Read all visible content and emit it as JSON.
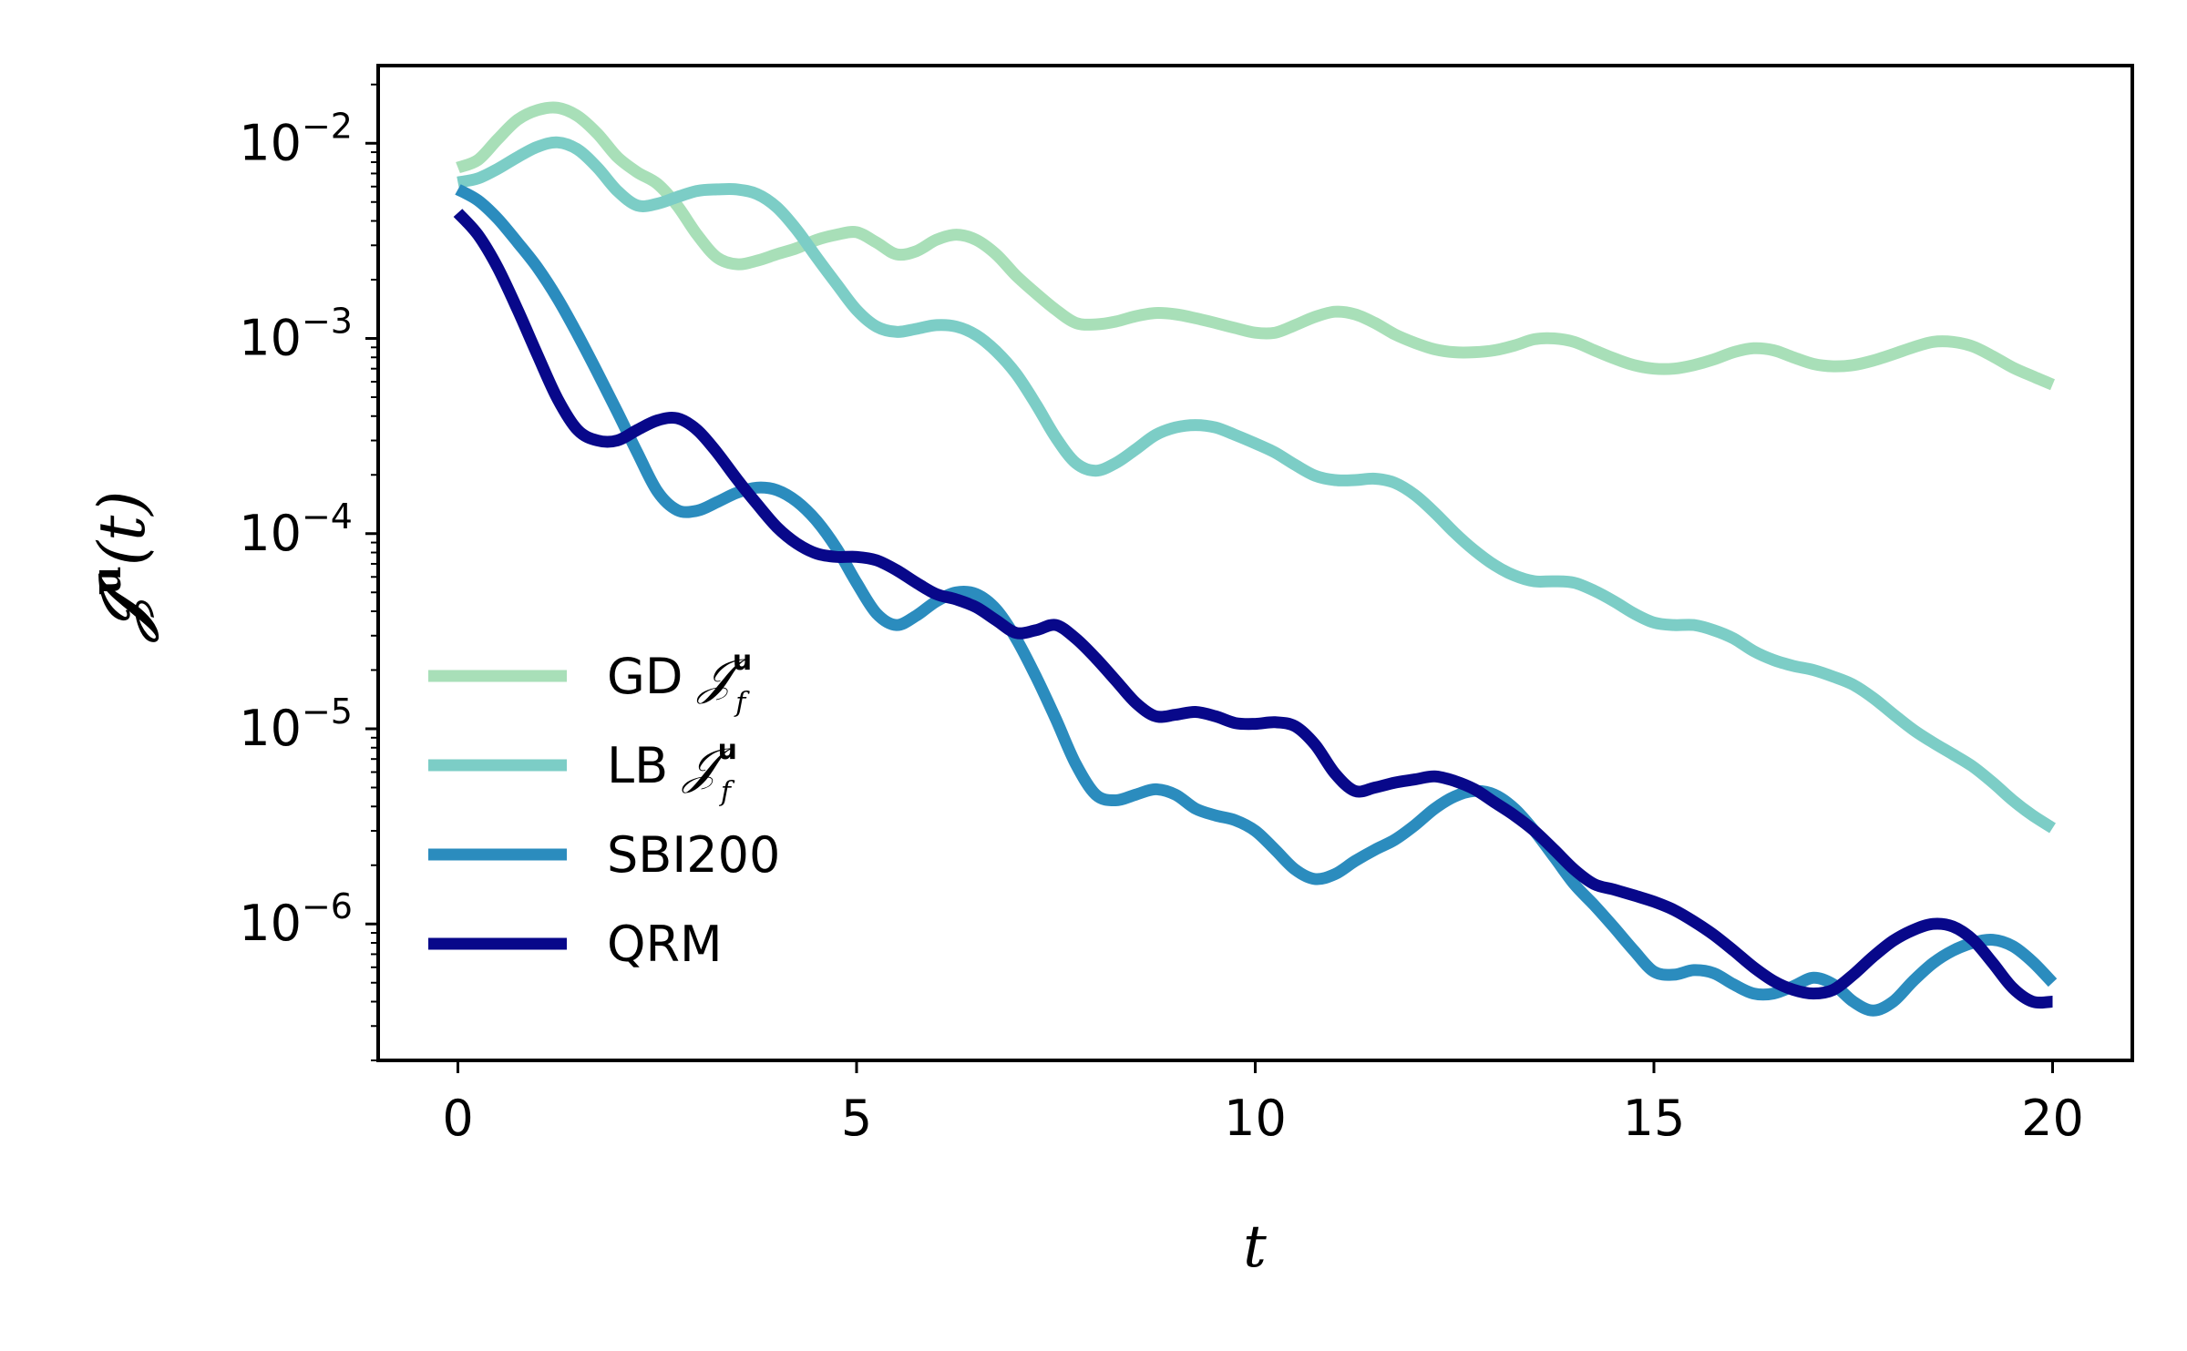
{
  "chart_data": {
    "type": "line",
    "xlabel": "t",
    "ylabel": {
      "main": "𝒥",
      "sup": "u",
      "suffix": "(t)"
    },
    "xlim": [
      -1,
      21
    ],
    "ylim": [
      2e-07,
      0.025
    ],
    "yscale": "log",
    "grid": false,
    "legend_position": "lower-left",
    "x_ticks": [
      0,
      5,
      10,
      15,
      20
    ],
    "x_tick_labels": [
      "0",
      "5",
      "10",
      "15",
      "20"
    ],
    "y_ticks": [
      1e-06,
      1e-05,
      0.0001,
      0.001,
      0.01
    ],
    "y_tick_labels": [
      {
        "base": "10",
        "exp": "−6"
      },
      {
        "base": "10",
        "exp": "−5"
      },
      {
        "base": "10",
        "exp": "−4"
      },
      {
        "base": "10",
        "exp": "−3"
      },
      {
        "base": "10",
        "exp": "−2"
      }
    ],
    "series": [
      {
        "name": "GD 𝒥_f^u",
        "legend_main": "GD ",
        "legend_math": "𝒥",
        "legend_sub": "f",
        "legend_sup": "u",
        "color": "#a8dfb8",
        "width": 13,
        "x": [
          0,
          0.25,
          0.5,
          0.75,
          1.0,
          1.25,
          1.5,
          1.75,
          2.0,
          2.25,
          2.5,
          2.75,
          3.0,
          3.25,
          3.5,
          3.75,
          4.0,
          4.25,
          4.5,
          4.75,
          5.0,
          5.25,
          5.5,
          5.75,
          6.0,
          6.25,
          6.5,
          6.75,
          7.0,
          7.25,
          7.5,
          7.75,
          8.0,
          8.25,
          8.5,
          8.75,
          9.0,
          9.25,
          9.5,
          9.75,
          10.0,
          10.25,
          10.5,
          10.75,
          11.0,
          11.25,
          11.5,
          11.75,
          12.0,
          12.25,
          12.5,
          12.75,
          13.0,
          13.25,
          13.5,
          13.75,
          14.0,
          14.25,
          14.5,
          14.75,
          15.0,
          15.25,
          15.5,
          15.75,
          16.0,
          16.25,
          16.5,
          16.75,
          17.0,
          17.25,
          17.5,
          17.75,
          18.0,
          18.25,
          18.5,
          18.75,
          19.0,
          19.25,
          19.5,
          19.75,
          20.0
        ],
        "y": [
          0.0075,
          0.0082,
          0.0105,
          0.0132,
          0.0148,
          0.0152,
          0.0138,
          0.0112,
          0.0085,
          0.0071,
          0.0062,
          0.0048,
          0.0034,
          0.0026,
          0.0024,
          0.0025,
          0.0027,
          0.0029,
          0.0032,
          0.0034,
          0.0035,
          0.0031,
          0.0027,
          0.0028,
          0.0032,
          0.0034,
          0.0032,
          0.0027,
          0.0021,
          0.0017,
          0.0014,
          0.0012,
          0.00118,
          0.00122,
          0.0013,
          0.00135,
          0.00133,
          0.00127,
          0.0012,
          0.00113,
          0.00107,
          0.00107,
          0.00117,
          0.00129,
          0.00137,
          0.00133,
          0.0012,
          0.00105,
          0.00095,
          0.00088,
          0.00085,
          0.00085,
          0.00087,
          0.00092,
          0.00099,
          0.001,
          0.00096,
          0.00087,
          0.00079,
          0.00073,
          0.0007,
          0.0007,
          0.00073,
          0.00078,
          0.00085,
          0.00089,
          0.00087,
          0.0008,
          0.00074,
          0.00072,
          0.00073,
          0.00077,
          0.00083,
          0.0009,
          0.00096,
          0.00096,
          0.00091,
          0.00081,
          0.00071,
          0.00064,
          0.00058
        ]
      },
      {
        "name": "LB 𝒥_f^u",
        "legend_main": "LB ",
        "legend_math": "𝒥",
        "legend_sub": "f",
        "legend_sup": "u",
        "color": "#7ccdc6",
        "width": 13,
        "x": [
          0,
          0.25,
          0.5,
          0.75,
          1.0,
          1.25,
          1.5,
          1.75,
          2.0,
          2.25,
          2.5,
          2.75,
          3.0,
          3.25,
          3.5,
          3.75,
          4.0,
          4.25,
          4.5,
          4.75,
          5.0,
          5.25,
          5.5,
          5.75,
          6.0,
          6.25,
          6.5,
          6.75,
          7.0,
          7.25,
          7.5,
          7.75,
          8.0,
          8.25,
          8.5,
          8.75,
          9.0,
          9.25,
          9.5,
          9.75,
          10.0,
          10.25,
          10.5,
          10.75,
          11.0,
          11.25,
          11.5,
          11.75,
          12.0,
          12.25,
          12.5,
          12.75,
          13.0,
          13.25,
          13.5,
          13.75,
          14.0,
          14.25,
          14.5,
          14.75,
          15.0,
          15.25,
          15.5,
          15.75,
          16.0,
          16.25,
          16.5,
          16.75,
          17.0,
          17.25,
          17.5,
          17.75,
          18.0,
          18.25,
          18.5,
          18.75,
          19.0,
          19.25,
          19.5,
          19.75,
          20.0
        ],
        "y": [
          0.0063,
          0.0066,
          0.0074,
          0.0085,
          0.0096,
          0.0101,
          0.0093,
          0.0075,
          0.0057,
          0.0048,
          0.0049,
          0.0053,
          0.0057,
          0.0058,
          0.0058,
          0.0055,
          0.0047,
          0.0036,
          0.0026,
          0.0019,
          0.0014,
          0.00115,
          0.00108,
          0.00112,
          0.00117,
          0.00115,
          0.00104,
          0.00086,
          0.00066,
          0.00046,
          0.00031,
          0.00023,
          0.00021,
          0.00023,
          0.00027,
          0.00032,
          0.00035,
          0.00036,
          0.00035,
          0.00032,
          0.00029,
          0.00026,
          0.000225,
          0.000198,
          0.000188,
          0.000188,
          0.000191,
          0.000182,
          0.000158,
          0.000128,
          0.000101,
          8.2e-05,
          6.9e-05,
          6.1e-05,
          5.7e-05,
          5.7e-05,
          5.6e-05,
          5.1e-05,
          4.5e-05,
          3.9e-05,
          3.5e-05,
          3.4e-05,
          3.4e-05,
          3.2e-05,
          2.9e-05,
          2.5e-05,
          2.25e-05,
          2.1e-05,
          2e-05,
          1.85e-05,
          1.68e-05,
          1.44e-05,
          1.19e-05,
          9.9e-06,
          8.5e-06,
          7.4e-06,
          6.4e-06,
          5.3e-06,
          4.3e-06,
          3.6e-06,
          3.1e-06
        ]
      },
      {
        "name": "SBI200",
        "legend_main": "SBI200",
        "color": "#2b8cbe",
        "width": 13,
        "x": [
          0,
          0.25,
          0.5,
          0.75,
          1.0,
          1.25,
          1.5,
          1.75,
          2.0,
          2.25,
          2.5,
          2.75,
          3.0,
          3.25,
          3.5,
          3.75,
          4.0,
          4.25,
          4.5,
          4.75,
          5.0,
          5.25,
          5.5,
          5.75,
          6.0,
          6.25,
          6.5,
          6.75,
          7.0,
          7.25,
          7.5,
          7.75,
          8.0,
          8.25,
          8.5,
          8.75,
          9.0,
          9.25,
          9.5,
          9.75,
          10.0,
          10.25,
          10.5,
          10.75,
          11.0,
          11.25,
          11.5,
          11.75,
          12.0,
          12.25,
          12.5,
          12.75,
          13.0,
          13.25,
          13.5,
          13.75,
          14.0,
          14.25,
          14.5,
          14.75,
          15.0,
          15.25,
          15.5,
          15.75,
          16.0,
          16.25,
          16.5,
          16.75,
          17.0,
          17.25,
          17.5,
          17.75,
          18.0,
          18.25,
          18.5,
          18.75,
          19.0,
          19.25,
          19.5,
          19.75,
          20.0
        ],
        "y": [
          0.0058,
          0.0051,
          0.0041,
          0.0031,
          0.0023,
          0.0016,
          0.00105,
          0.00067,
          0.00042,
          0.00026,
          0.000165,
          0.000132,
          0.000131,
          0.000145,
          0.000162,
          0.000172,
          0.000167,
          0.000146,
          0.000116,
          8.4e-05,
          5.6e-05,
          3.9e-05,
          3.4e-05,
          3.8e-05,
          4.5e-05,
          5e-05,
          4.9e-05,
          4.1e-05,
          2.9e-05,
          1.85e-05,
          1.12e-05,
          6.6e-06,
          4.6e-06,
          4.3e-06,
          4.6e-06,
          4.9e-06,
          4.6e-06,
          3.9e-06,
          3.6e-06,
          3.4e-06,
          3e-06,
          2.4e-06,
          1.9e-06,
          1.7e-06,
          1.8e-06,
          2.1e-06,
          2.4e-06,
          2.7e-06,
          3.2e-06,
          3.9e-06,
          4.5e-06,
          4.8e-06,
          4.6e-06,
          3.9e-06,
          3e-06,
          2.2e-06,
          1.6e-06,
          1.25e-06,
          9.6e-07,
          7.3e-07,
          5.7e-07,
          5.5e-07,
          5.8e-07,
          5.6e-07,
          4.9e-07,
          4.4e-07,
          4.4e-07,
          4.8e-07,
          5.3e-07,
          4.9e-07,
          4e-07,
          3.6e-07,
          4e-07,
          5.1e-07,
          6.3e-07,
          7.3e-07,
          8e-07,
          8.3e-07,
          7.7e-07,
          6.4e-07,
          5e-07
        ]
      },
      {
        "name": "QRM",
        "legend_main": "QRM",
        "color": "#08088a",
        "width": 13,
        "x": [
          0,
          0.25,
          0.5,
          0.75,
          1.0,
          1.25,
          1.5,
          1.75,
          2.0,
          2.25,
          2.5,
          2.75,
          3.0,
          3.25,
          3.5,
          3.75,
          4.0,
          4.25,
          4.5,
          4.75,
          5.0,
          5.25,
          5.5,
          5.75,
          6.0,
          6.25,
          6.5,
          6.75,
          7.0,
          7.25,
          7.5,
          7.75,
          8.0,
          8.25,
          8.5,
          8.75,
          9.0,
          9.25,
          9.5,
          9.75,
          10.0,
          10.25,
          10.5,
          10.75,
          11.0,
          11.25,
          11.5,
          11.75,
          12.0,
          12.25,
          12.5,
          12.75,
          13.0,
          13.25,
          13.5,
          13.75,
          14.0,
          14.25,
          14.5,
          14.75,
          15.0,
          15.25,
          15.5,
          15.75,
          16.0,
          16.25,
          16.5,
          16.75,
          17.0,
          17.25,
          17.5,
          17.75,
          18.0,
          18.25,
          18.5,
          18.75,
          19.0,
          19.25,
          19.5,
          19.75,
          20.0
        ],
        "y": [
          0.0044,
          0.0034,
          0.0023,
          0.0014,
          0.00082,
          0.00049,
          0.00034,
          0.0003,
          0.0003,
          0.00034,
          0.00038,
          0.00039,
          0.00034,
          0.00026,
          0.00019,
          0.000142,
          0.000108,
          8.9e-05,
          7.9e-05,
          7.6e-05,
          7.6e-05,
          7.3e-05,
          6.5e-05,
          5.6e-05,
          4.9e-05,
          4.6e-05,
          4.2e-05,
          3.6e-05,
          3.1e-05,
          3.2e-05,
          3.4e-05,
          2.9e-05,
          2.3e-05,
          1.77e-05,
          1.36e-05,
          1.16e-05,
          1.18e-05,
          1.22e-05,
          1.16e-05,
          1.07e-05,
          1.06e-05,
          1.08e-05,
          1.03e-05,
          8.3e-06,
          5.9e-06,
          4.8e-06,
          5e-06,
          5.3e-06,
          5.5e-06,
          5.7e-06,
          5.4e-06,
          4.9e-06,
          4.2e-06,
          3.6e-06,
          3e-06,
          2.4e-06,
          1.9e-06,
          1.6e-06,
          1.5e-06,
          1.4e-06,
          1.3e-06,
          1.18e-06,
          1.03e-06,
          8.8e-07,
          7.3e-07,
          6e-07,
          5.1e-07,
          4.6e-07,
          4.4e-07,
          4.6e-07,
          5.5e-07,
          6.8e-07,
          8.2e-07,
          9.3e-07,
          1e-06,
          9.7e-07,
          8.3e-07,
          6.3e-07,
          4.7e-07,
          4e-07,
          4e-07
        ]
      }
    ]
  }
}
